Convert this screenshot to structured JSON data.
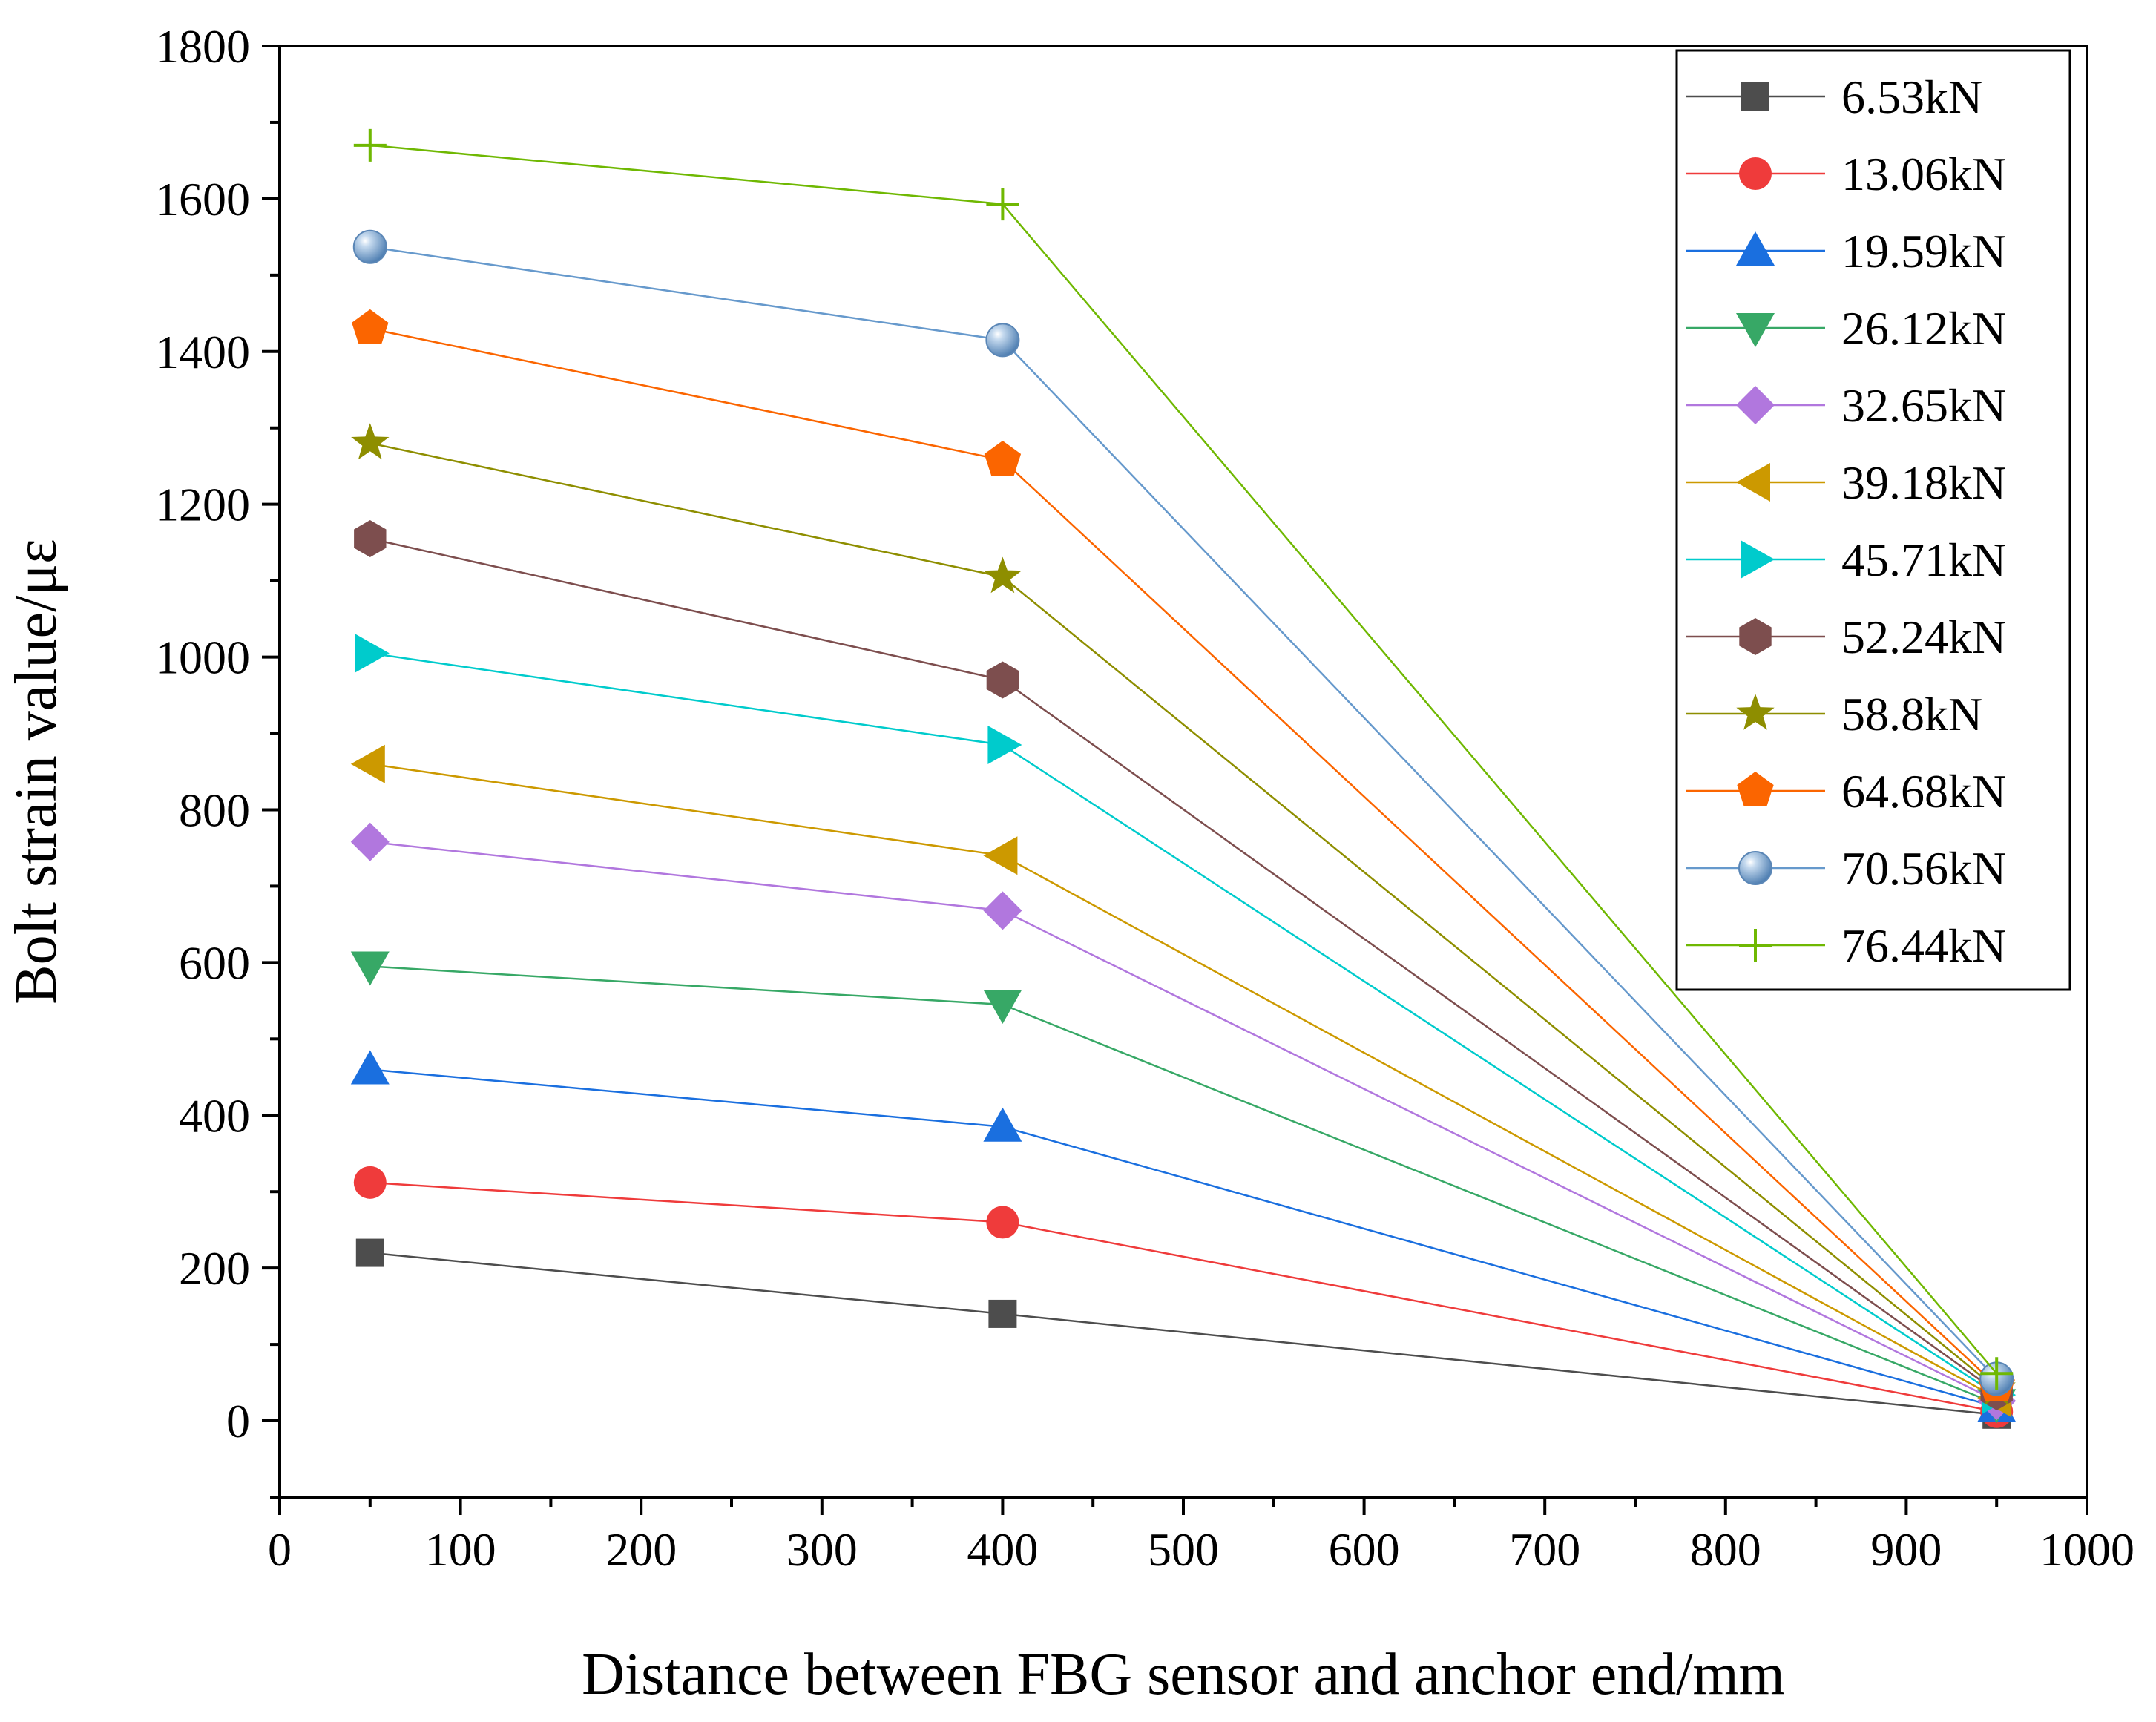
{
  "chart_data": {
    "type": "line",
    "title": "",
    "xlabel": "Distance between FBG sensor and anchor end/mm",
    "ylabel": "Bolt strain value/με",
    "xlim": [
      0,
      1000
    ],
    "ylim": [
      -100,
      1800
    ],
    "x_ticks": [
      0,
      100,
      200,
      300,
      400,
      500,
      600,
      700,
      800,
      900,
      1000
    ],
    "y_ticks": [
      0,
      200,
      400,
      600,
      800,
      1000,
      1200,
      1400,
      1600,
      1800
    ],
    "grid": false,
    "legend_position": "top-right",
    "x": [
      50,
      400,
      950
    ],
    "series": [
      {
        "name": "6.53kN",
        "values": [
          220,
          140,
          8
        ],
        "color": "#4d4d4d",
        "marker": "square"
      },
      {
        "name": "13.06kN",
        "values": [
          312,
          260,
          12
        ],
        "color": "#ef3b3b",
        "marker": "circle"
      },
      {
        "name": "19.59kN",
        "values": [
          460,
          385,
          18
        ],
        "color": "#1a6fdf",
        "marker": "triangle-up"
      },
      {
        "name": "26.12kN",
        "values": [
          595,
          545,
          22
        ],
        "color": "#37a866",
        "marker": "triangle-down"
      },
      {
        "name": "32.65kN",
        "values": [
          758,
          668,
          26
        ],
        "color": "#b177de",
        "marker": "diamond"
      },
      {
        "name": "39.18kN",
        "values": [
          860,
          740,
          30
        ],
        "color": "#cc9900",
        "marker": "triangle-left"
      },
      {
        "name": "45.71kN",
        "values": [
          1005,
          885,
          34
        ],
        "color": "#00cbcc",
        "marker": "triangle-right"
      },
      {
        "name": "52.24kN",
        "values": [
          1155,
          970,
          38
        ],
        "color": "#7d4e4e",
        "marker": "hexagon"
      },
      {
        "name": "58.8kN",
        "values": [
          1280,
          1105,
          42
        ],
        "color": "#8e8e00",
        "marker": "star"
      },
      {
        "name": "64.68kN",
        "values": [
          1430,
          1258,
          46
        ],
        "color": "#fb6500",
        "marker": "pentagon"
      },
      {
        "name": "70.56kN",
        "values": [
          1537,
          1415,
          55
        ],
        "color": "#6699cc",
        "marker": "sphere"
      },
      {
        "name": "76.44kN",
        "values": [
          1670,
          1593,
          62
        ],
        "color": "#6fb802",
        "marker": "plus"
      }
    ]
  }
}
